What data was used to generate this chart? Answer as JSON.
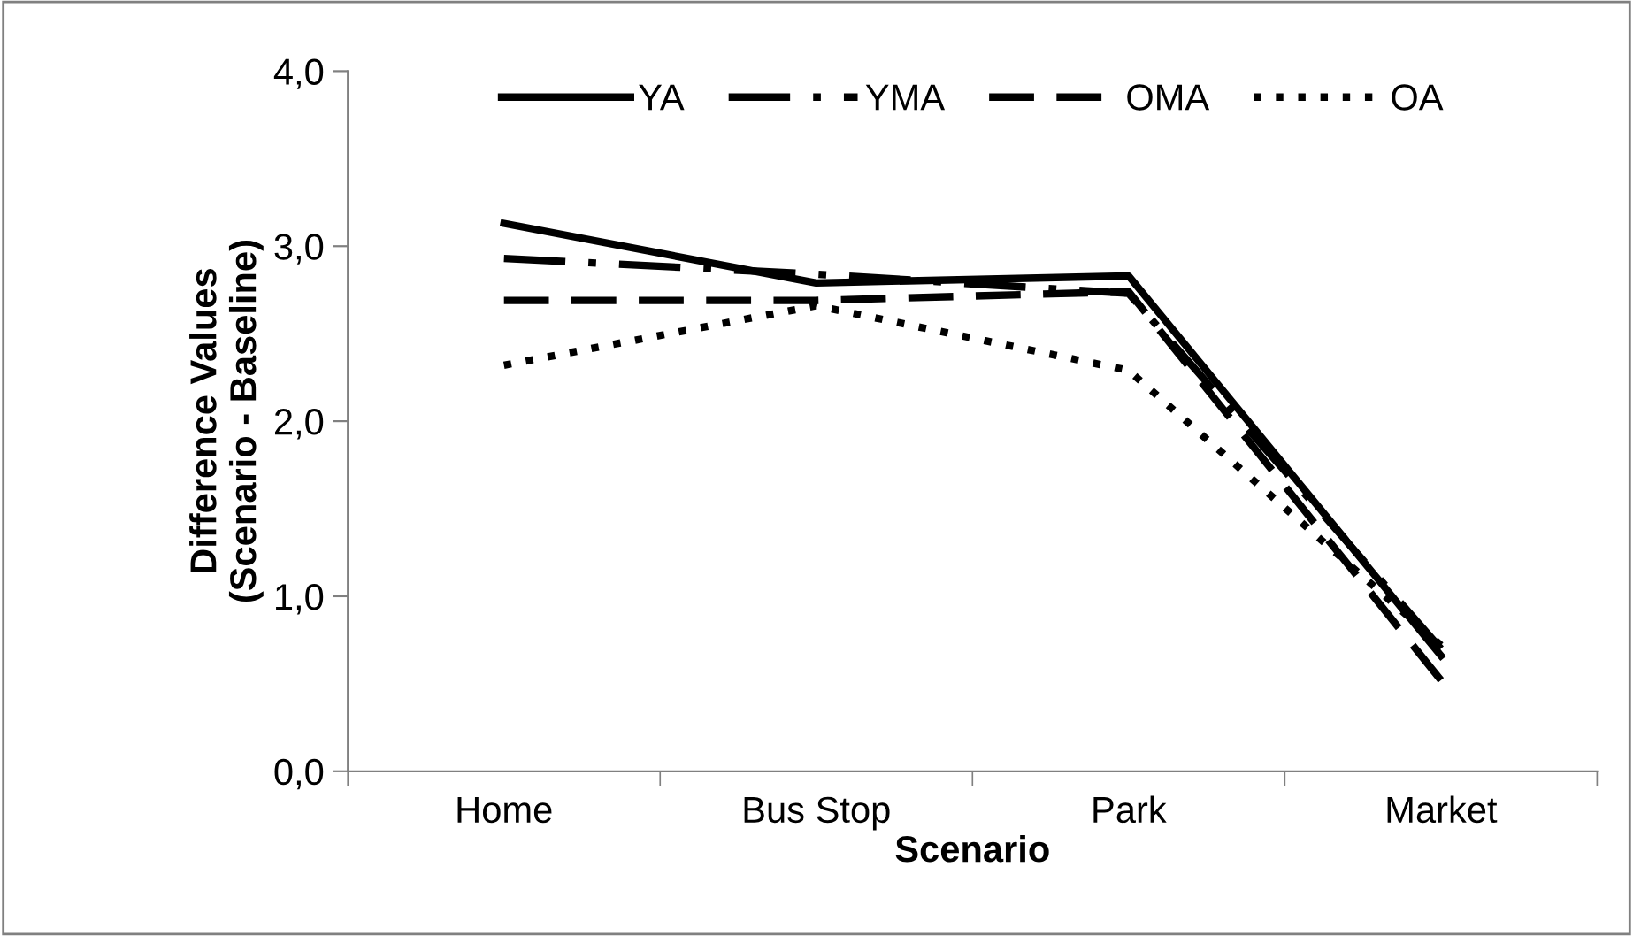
{
  "chart_data": {
    "type": "line",
    "xlabel": "Scenario",
    "ylabel": "Difference Values\n(Scenario - Baseline)",
    "categories": [
      "Home",
      "Bus Stop",
      "Park",
      "Market"
    ],
    "series": [
      {
        "name": "YA",
        "color": "#000000",
        "line_style": "solid",
        "values": [
          3.13,
          2.79,
          2.83,
          0.66
        ]
      },
      {
        "name": "YMA",
        "color": "#000000",
        "line_style": "dashdot",
        "values": [
          2.93,
          2.84,
          2.73,
          0.7
        ]
      },
      {
        "name": "OMA",
        "color": "#000000",
        "line_style": "dashed",
        "values": [
          2.69,
          2.69,
          2.74,
          0.52
        ]
      },
      {
        "name": "OA",
        "color": "#000000",
        "line_style": "dotted",
        "values": [
          2.32,
          2.66,
          2.29,
          0.72
        ]
      }
    ],
    "ylim": [
      0,
      4
    ],
    "yticks": [
      {
        "value": 0,
        "label": "0,0"
      },
      {
        "value": 1,
        "label": "1,0"
      },
      {
        "value": 2,
        "label": "2,0"
      },
      {
        "value": 3,
        "label": "3,0"
      },
      {
        "value": 4,
        "label": "4,0"
      }
    ],
    "grid": false,
    "legend": "top",
    "marker": "none"
  }
}
